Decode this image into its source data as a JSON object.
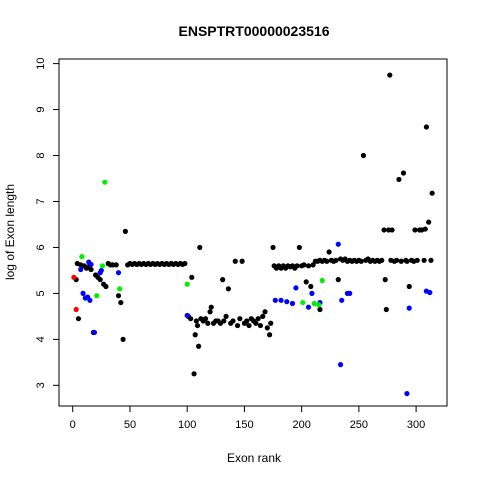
{
  "chart_data": {
    "type": "scatter",
    "title": "ENSPTRT00000023516",
    "xlabel": "Exon rank",
    "ylabel": "log of Exon length",
    "xlim": [
      -12,
      327
    ],
    "ylim": [
      2.55,
      10.1
    ],
    "xticks": [
      0,
      50,
      100,
      150,
      200,
      250,
      300
    ],
    "yticks": [
      3,
      4,
      5,
      6,
      7,
      8,
      9,
      10
    ],
    "grid": false,
    "legend": "none",
    "colors": {
      "black": "#000000",
      "blue": "#0000ff",
      "green": "#00ee00",
      "red": "#ff0000"
    },
    "series": [
      {
        "color": "black",
        "points": [
          [
            3,
            5.3
          ],
          [
            4,
            5.65
          ],
          [
            5,
            4.45
          ],
          [
            7,
            5.62
          ],
          [
            10,
            5.6
          ],
          [
            12,
            5.55
          ],
          [
            14,
            5.58
          ],
          [
            16,
            5.52
          ],
          [
            18,
            4.15
          ],
          [
            20,
            5.4
          ],
          [
            22,
            5.35
          ],
          [
            24,
            5.3
          ],
          [
            27,
            5.2
          ],
          [
            29,
            5.15
          ],
          [
            31,
            5.65
          ],
          [
            33,
            5.62
          ],
          [
            35,
            5.62
          ],
          [
            38,
            5.62
          ],
          [
            40,
            4.95
          ],
          [
            42,
            4.8
          ],
          [
            44,
            4.0
          ],
          [
            46,
            6.35
          ],
          [
            48,
            5.62
          ],
          [
            50,
            5.65
          ],
          [
            52,
            5.63
          ],
          [
            54,
            5.65
          ],
          [
            56,
            5.63
          ],
          [
            58,
            5.65
          ],
          [
            60,
            5.63
          ],
          [
            62,
            5.65
          ],
          [
            64,
            5.63
          ],
          [
            66,
            5.65
          ],
          [
            68,
            5.63
          ],
          [
            70,
            5.65
          ],
          [
            72,
            5.63
          ],
          [
            74,
            5.65
          ],
          [
            76,
            5.63
          ],
          [
            78,
            5.65
          ],
          [
            80,
            5.63
          ],
          [
            82,
            5.65
          ],
          [
            84,
            5.63
          ],
          [
            86,
            5.65
          ],
          [
            88,
            5.63
          ],
          [
            90,
            5.65
          ],
          [
            92,
            5.63
          ],
          [
            94,
            5.65
          ],
          [
            96,
            5.63
          ],
          [
            98,
            5.65
          ],
          [
            101,
            4.5
          ],
          [
            103,
            4.45
          ],
          [
            104,
            5.35
          ],
          [
            106,
            3.25
          ],
          [
            107,
            4.1
          ],
          [
            108,
            4.4
          ],
          [
            109,
            4.3
          ],
          [
            110,
            3.85
          ],
          [
            111,
            6.0
          ],
          [
            112,
            4.45
          ],
          [
            114,
            4.4
          ],
          [
            116,
            4.45
          ],
          [
            118,
            4.35
          ],
          [
            120,
            4.6
          ],
          [
            121,
            4.7
          ],
          [
            123,
            4.35
          ],
          [
            125,
            4.4
          ],
          [
            127,
            4.4
          ],
          [
            129,
            4.35
          ],
          [
            131,
            5.3
          ],
          [
            132,
            4.4
          ],
          [
            134,
            4.5
          ],
          [
            136,
            5.1
          ],
          [
            138,
            4.35
          ],
          [
            140,
            4.4
          ],
          [
            142,
            5.7
          ],
          [
            144,
            4.3
          ],
          [
            146,
            4.45
          ],
          [
            148,
            5.7
          ],
          [
            150,
            4.35
          ],
          [
            152,
            4.4
          ],
          [
            154,
            4.3
          ],
          [
            156,
            4.45
          ],
          [
            158,
            4.4
          ],
          [
            160,
            4.35
          ],
          [
            162,
            4.45
          ],
          [
            164,
            4.3
          ],
          [
            166,
            4.5
          ],
          [
            168,
            4.6
          ],
          [
            170,
            4.25
          ],
          [
            172,
            4.1
          ],
          [
            173,
            4.35
          ],
          [
            175,
            6.0
          ],
          [
            176,
            5.6
          ],
          [
            178,
            5.55
          ],
          [
            180,
            5.6
          ],
          [
            182,
            5.55
          ],
          [
            184,
            5.6
          ],
          [
            186,
            5.55
          ],
          [
            188,
            5.6
          ],
          [
            190,
            5.58
          ],
          [
            192,
            5.6
          ],
          [
            194,
            5.55
          ],
          [
            196,
            5.6
          ],
          [
            198,
            6.0
          ],
          [
            200,
            5.6
          ],
          [
            202,
            5.62
          ],
          [
            204,
            5.25
          ],
          [
            206,
            5.6
          ],
          [
            208,
            5.15
          ],
          [
            210,
            5.62
          ],
          [
            212,
            5.7
          ],
          [
            214,
            5.7
          ],
          [
            216,
            5.72
          ],
          [
            218,
            5.7
          ],
          [
            220,
            5.72
          ],
          [
            222,
            5.7
          ],
          [
            224,
            5.9
          ],
          [
            226,
            5.72
          ],
          [
            228,
            5.7
          ],
          [
            230,
            5.72
          ],
          [
            232,
            5.3
          ],
          [
            234,
            5.75
          ],
          [
            236,
            5.72
          ],
          [
            238,
            5.75
          ],
          [
            240,
            5.7
          ],
          [
            242,
            5.72
          ],
          [
            244,
            5.7
          ],
          [
            246,
            5.72
          ],
          [
            248,
            5.7
          ],
          [
            250,
            5.72
          ],
          [
            252,
            5.7
          ],
          [
            254,
            8.0
          ],
          [
            256,
            5.72
          ],
          [
            258,
            5.75
          ],
          [
            260,
            5.7
          ],
          [
            262,
            5.72
          ],
          [
            264,
            5.7
          ],
          [
            266,
            5.72
          ],
          [
            268,
            5.7
          ],
          [
            270,
            5.72
          ],
          [
            272,
            6.38
          ],
          [
            273,
            5.3
          ],
          [
            274,
            4.65
          ],
          [
            276,
            6.38
          ],
          [
            277,
            9.75
          ],
          [
            278,
            5.72
          ],
          [
            279,
            6.38
          ],
          [
            281,
            5.7
          ],
          [
            283,
            5.72
          ],
          [
            285,
            7.48
          ],
          [
            287,
            5.7
          ],
          [
            289,
            7.62
          ],
          [
            291,
            5.72
          ],
          [
            292,
            5.7
          ],
          [
            294,
            5.15
          ],
          [
            296,
            5.72
          ],
          [
            298,
            5.7
          ],
          [
            299,
            6.38
          ],
          [
            301,
            5.72
          ],
          [
            303,
            6.38
          ],
          [
            305,
            6.38
          ],
          [
            307,
            5.72
          ],
          [
            308,
            6.4
          ],
          [
            309,
            8.62
          ],
          [
            311,
            6.55
          ],
          [
            313,
            5.72
          ],
          [
            314,
            7.18
          ],
          [
            216,
            4.65
          ]
        ]
      },
      {
        "color": "blue",
        "points": [
          [
            7,
            5.52
          ],
          [
            9,
            5.0
          ],
          [
            11,
            4.9
          ],
          [
            13,
            4.92
          ],
          [
            15,
            4.85
          ],
          [
            14,
            5.68
          ],
          [
            16,
            5.63
          ],
          [
            19,
            4.15
          ],
          [
            24,
            5.45
          ],
          [
            25,
            5.5
          ],
          [
            40,
            5.45
          ],
          [
            100,
            4.52
          ],
          [
            177,
            4.85
          ],
          [
            182,
            4.85
          ],
          [
            187,
            4.82
          ],
          [
            192,
            4.78
          ],
          [
            195,
            5.12
          ],
          [
            206,
            4.7
          ],
          [
            209,
            5.0
          ],
          [
            216,
            4.8
          ],
          [
            232,
            6.07
          ],
          [
            234,
            3.45
          ],
          [
            235,
            4.85
          ],
          [
            240,
            5.0
          ],
          [
            242,
            5.0
          ],
          [
            292,
            2.82
          ],
          [
            294,
            4.68
          ],
          [
            309,
            5.05
          ],
          [
            312,
            5.02
          ]
        ]
      },
      {
        "color": "green",
        "points": [
          [
            8,
            5.8
          ],
          [
            21,
            4.95
          ],
          [
            26,
            5.6
          ],
          [
            28,
            7.42
          ],
          [
            41,
            5.1
          ],
          [
            100,
            5.2
          ],
          [
            201,
            4.8
          ],
          [
            211,
            4.78
          ],
          [
            215,
            4.75
          ],
          [
            218,
            5.28
          ]
        ]
      },
      {
        "color": "red",
        "points": [
          [
            1,
            5.35
          ],
          [
            3,
            4.65
          ]
        ]
      }
    ]
  }
}
